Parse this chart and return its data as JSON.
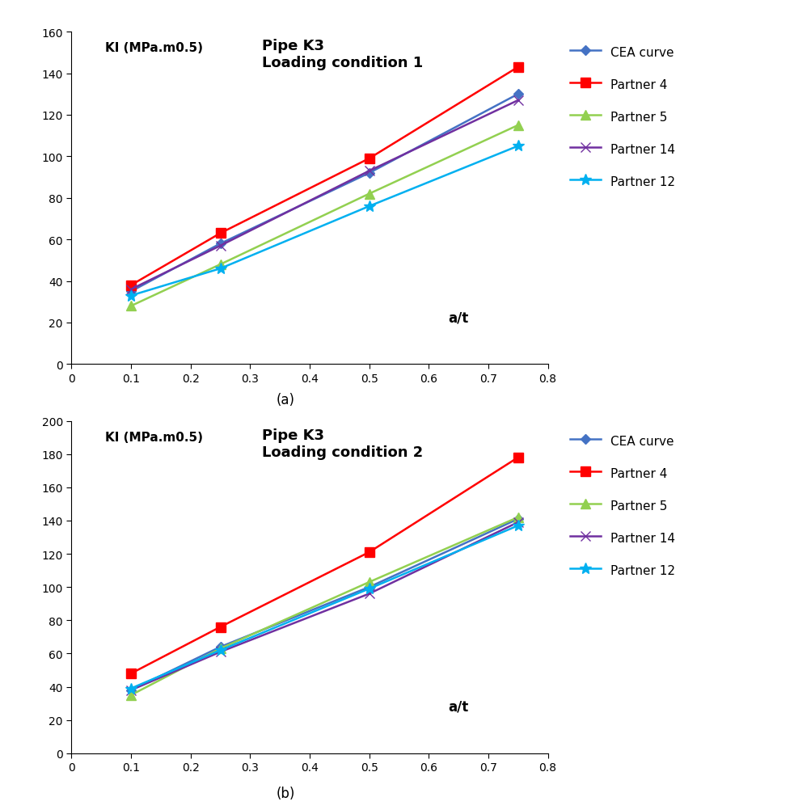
{
  "chart_a": {
    "title_line1": "Pipe K3",
    "title_line2": "Loading condition 1",
    "ylabel": "KI (MPa.m0.5)",
    "xlabel": "a/t",
    "xlim": [
      0,
      0.8
    ],
    "ylim": [
      0,
      160
    ],
    "yticks": [
      0,
      20,
      40,
      60,
      80,
      100,
      120,
      140,
      160
    ],
    "xticks": [
      0,
      0.1,
      0.2,
      0.3,
      0.4,
      0.5,
      0.6,
      0.7,
      0.8
    ],
    "xtick_labels": [
      "0",
      "0.1",
      "0.2",
      "0.3",
      "0.4",
      "0.5",
      "0.6",
      "0.7",
      "0.8"
    ],
    "series": {
      "CEA curve": {
        "x": [
          0.1,
          0.25,
          0.5,
          0.75
        ],
        "y": [
          35,
          58,
          92,
          130
        ],
        "color": "#4472C4",
        "marker": "D"
      },
      "Partner 4": {
        "x": [
          0.1,
          0.25,
          0.5,
          0.75
        ],
        "y": [
          38,
          63,
          99,
          143
        ],
        "color": "#FF0000",
        "marker": "s"
      },
      "Partner 5": {
        "x": [
          0.1,
          0.25,
          0.5,
          0.75
        ],
        "y": [
          28,
          48,
          82,
          115
        ],
        "color": "#92D050",
        "marker": "^"
      },
      "Partner 14": {
        "x": [
          0.1,
          0.25,
          0.5,
          0.75
        ],
        "y": [
          36,
          57,
          93,
          127
        ],
        "color": "#7030A0",
        "marker": "x"
      },
      "Partner 12": {
        "x": [
          0.1,
          0.25,
          0.5,
          0.75
        ],
        "y": [
          33,
          46,
          76,
          105
        ],
        "color": "#00B0F0",
        "marker": "*"
      }
    },
    "label": "(a)"
  },
  "chart_b": {
    "title_line1": "Pipe K3",
    "title_line2": "Loading condition 2",
    "ylabel": "KI (MPa.m0.5)",
    "xlabel": "a/t",
    "xlim": [
      0,
      0.8
    ],
    "ylim": [
      0,
      200
    ],
    "yticks": [
      0,
      20,
      40,
      60,
      80,
      100,
      120,
      140,
      160,
      180,
      200
    ],
    "xticks": [
      0,
      0.1,
      0.2,
      0.3,
      0.4,
      0.5,
      0.6,
      0.7,
      0.8
    ],
    "xtick_labels": [
      "0",
      "0.1",
      "0.2",
      "0.3",
      "0.4",
      "0.5",
      "0.6",
      "0.7",
      "0.8"
    ],
    "series": {
      "CEA curve": {
        "x": [
          0.1,
          0.25,
          0.5,
          0.75
        ],
        "y": [
          38,
          64,
          100,
          141
        ],
        "color": "#4472C4",
        "marker": "D"
      },
      "Partner 4": {
        "x": [
          0.1,
          0.25,
          0.5,
          0.75
        ],
        "y": [
          48,
          76,
          121,
          178
        ],
        "color": "#FF0000",
        "marker": "s"
      },
      "Partner 5": {
        "x": [
          0.1,
          0.25,
          0.5,
          0.75
        ],
        "y": [
          35,
          63,
          103,
          142
        ],
        "color": "#92D050",
        "marker": "^"
      },
      "Partner 14": {
        "x": [
          0.1,
          0.25,
          0.5,
          0.75
        ],
        "y": [
          38,
          61,
          96,
          139
        ],
        "color": "#7030A0",
        "marker": "x"
      },
      "Partner 12": {
        "x": [
          0.1,
          0.25,
          0.5,
          0.75
        ],
        "y": [
          39,
          62,
          99,
          137
        ],
        "color": "#00B0F0",
        "marker": "*"
      }
    },
    "label": "(b)"
  },
  "legend_order": [
    "CEA curve",
    "Partner 4",
    "Partner 5",
    "Partner 14",
    "Partner 12"
  ],
  "bg_color": "#FFFFFF",
  "plot_area_color": "#FFFFFF",
  "marker_sizes": {
    "D": 6,
    "s": 8,
    "^": 8,
    "x": 8,
    "*": 10
  },
  "linewidth": 1.8
}
